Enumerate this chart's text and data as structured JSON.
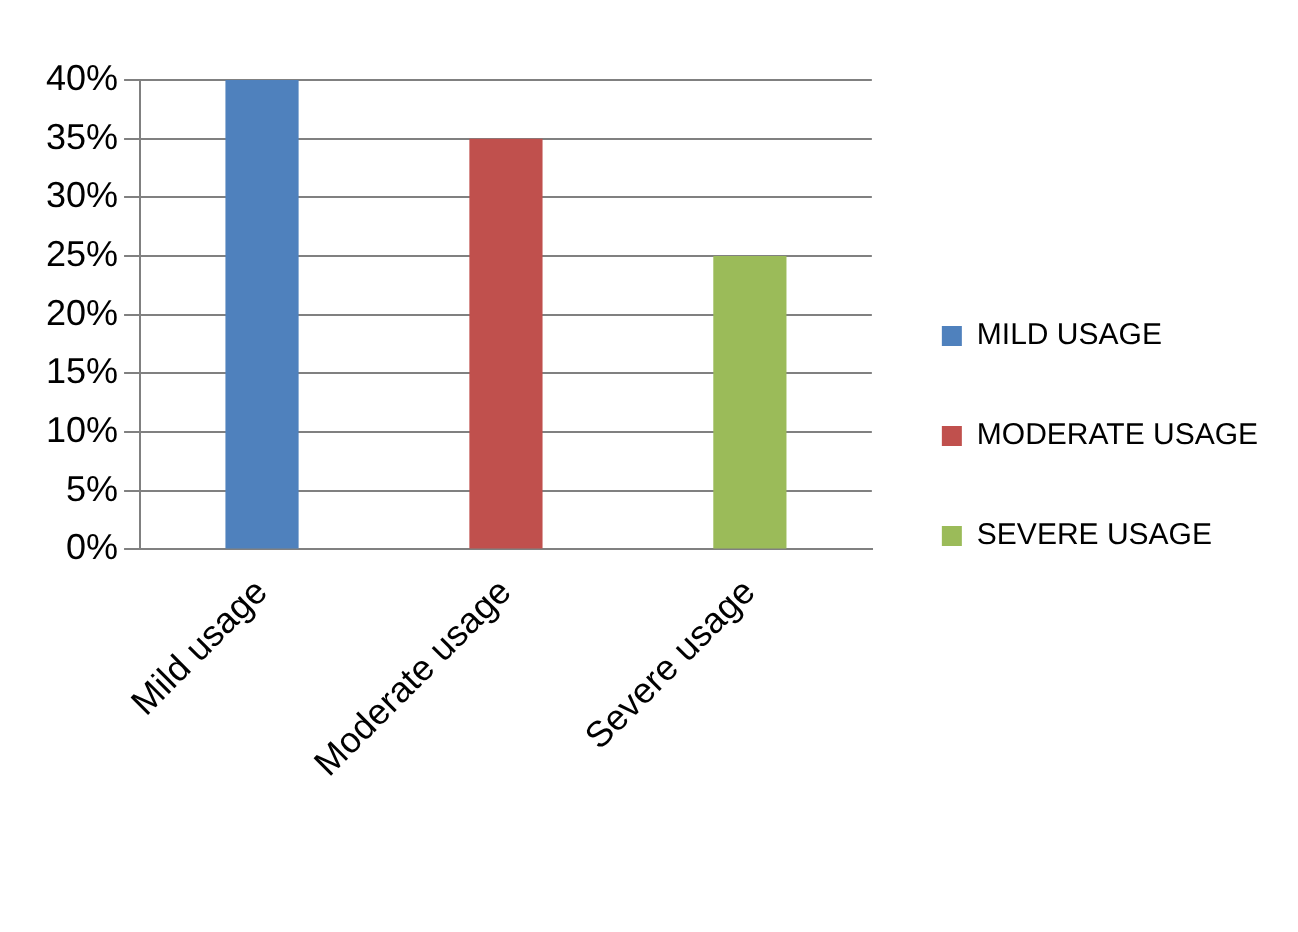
{
  "chart_data": {
    "type": "bar",
    "categories": [
      "Mild usage",
      "Moderate usage",
      "Severe usage"
    ],
    "series": [
      {
        "name": "MILD USAGE",
        "color": "#4f81bd",
        "values": [
          40,
          null,
          null
        ]
      },
      {
        "name": "MODERATE USAGE",
        "color": "#c0504d",
        "values": [
          null,
          35,
          null
        ]
      },
      {
        "name": "SEVERE USAGE",
        "color": "#9bbb59",
        "values": [
          null,
          null,
          25
        ]
      }
    ],
    "ylim": [
      0,
      40
    ],
    "yticks": [
      {
        "value": 0,
        "label": "0%"
      },
      {
        "value": 5,
        "label": "5%"
      },
      {
        "value": 10,
        "label": "10%"
      },
      {
        "value": 15,
        "label": "15%"
      },
      {
        "value": 20,
        "label": "20%"
      },
      {
        "value": 25,
        "label": "25%"
      },
      {
        "value": 30,
        "label": "30%"
      },
      {
        "value": 35,
        "label": "35%"
      },
      {
        "value": 40,
        "label": "40%"
      }
    ],
    "grid": "y",
    "legend": "right"
  }
}
